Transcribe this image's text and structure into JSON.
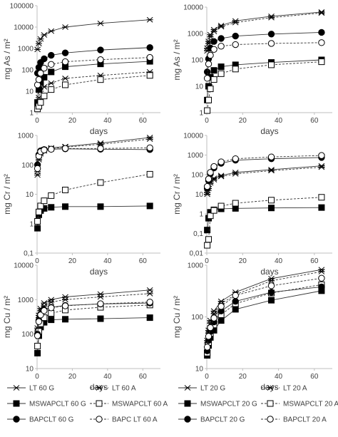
{
  "styles": {
    "lt": {
      "marker": "x",
      "fill": "none"
    },
    "ms": {
      "marker": "square",
      "fill": "#000000"
    },
    "msa": {
      "marker": "square",
      "fill": "#ffffff"
    },
    "ba": {
      "marker": "circle",
      "fill": "#000000"
    },
    "baa": {
      "marker": "circle",
      "fill": "#ffffff"
    }
  },
  "legend": {
    "left": [
      {
        "label": "LT 60 G",
        "style": "lt",
        "dashed": false
      },
      {
        "label": "LT 60 A",
        "style": "lt",
        "dashed": true
      },
      {
        "label": "MSWAPCLT 60 G",
        "style": "ms",
        "dashed": false
      },
      {
        "label": "MSWAPCLT 60 A",
        "style": "msa",
        "dashed": true
      },
      {
        "label": "BAPCLT 60 G",
        "style": "ba",
        "dashed": false
      },
      {
        "label": "BAPC LT 60 A",
        "style": "baa",
        "dashed": true
      }
    ],
    "right": [
      {
        "label": "LT 20 G",
        "style": "lt",
        "dashed": false
      },
      {
        "label": "LT 20 A",
        "style": "lt",
        "dashed": true
      },
      {
        "label": "MSWAPCLT 20 G",
        "style": "ms",
        "dashed": false
      },
      {
        "label": "MSWAPCLT 20 A",
        "style": "msa",
        "dashed": true
      },
      {
        "label": "BAPCLT 20 G",
        "style": "ba",
        "dashed": false
      },
      {
        "label": "BAPCLT 20 A",
        "style": "baa",
        "dashed": true
      }
    ]
  },
  "chart_data": [
    {
      "id": "as60",
      "type": "scatter",
      "xlabel": "days",
      "ylabel": "mg As / m²",
      "xlim": [
        0,
        70
      ],
      "xticks": [
        "0",
        "20",
        "40",
        "60"
      ],
      "yscale": "log",
      "ylim": [
        1,
        100000
      ],
      "yticks": [
        "1",
        "10",
        "100",
        "1000",
        "10000",
        "100000"
      ],
      "series": [
        {
          "style": "lt",
          "dashed": false,
          "x": [
            0.25,
            1,
            2,
            4,
            8,
            16,
            36,
            64
          ],
          "y": [
            900,
            1700,
            2800,
            4300,
            6500,
            10000,
            15000,
            22000
          ]
        },
        {
          "style": "lt",
          "dashed": true,
          "x": [
            0.25,
            1,
            2,
            4,
            8,
            16,
            36,
            64
          ],
          "y": [
            2,
            5,
            10,
            16,
            24,
            40,
            55,
            80
          ]
        },
        {
          "style": "ms",
          "dashed": false,
          "x": [
            0.25,
            1,
            2,
            4,
            8,
            16,
            36,
            64
          ],
          "y": [
            3,
            12,
            25,
            45,
            80,
            140,
            190,
            250
          ]
        },
        {
          "style": "msa",
          "dashed": true,
          "x": [
            0.25,
            1,
            2,
            4,
            8,
            16,
            36,
            64
          ],
          "y": [
            1.5,
            2,
            3,
            6,
            12,
            20,
            35,
            55
          ]
        },
        {
          "style": "ba",
          "dashed": false,
          "x": [
            0.25,
            1,
            2,
            4,
            8,
            16,
            36,
            64
          ],
          "y": [
            70,
            130,
            220,
            330,
            480,
            620,
            850,
            1100
          ]
        },
        {
          "style": "baa",
          "dashed": true,
          "x": [
            0.25,
            1,
            2,
            4,
            8,
            16,
            36,
            64
          ],
          "y": [
            20,
            35,
            70,
            120,
            180,
            240,
            300,
            380
          ]
        }
      ]
    },
    {
      "id": "as20",
      "type": "scatter",
      "xlabel": "days",
      "ylabel": "mg As / m²",
      "xlim": [
        0,
        70
      ],
      "xticks": [
        "0",
        "20",
        "40",
        "60"
      ],
      "yscale": "log",
      "ylim": [
        1,
        10000
      ],
      "yticks": [
        "1",
        "10",
        "100",
        "1000",
        "10000"
      ],
      "series": [
        {
          "style": "lt",
          "dashed": false,
          "x": [
            0.25,
            1,
            2,
            4,
            8,
            16,
            36,
            64
          ],
          "y": [
            280,
            500,
            900,
            1400,
            2000,
            3000,
            4500,
            6500
          ]
        },
        {
          "style": "lt",
          "dashed": true,
          "x": [
            0.25,
            1,
            2,
            4,
            8,
            16,
            36,
            64
          ],
          "y": [
            220,
            420,
            750,
            1200,
            1800,
            2600,
            4000,
            6000
          ]
        },
        {
          "style": "ms",
          "dashed": false,
          "x": [
            0.25,
            1,
            2,
            4,
            8,
            16,
            36,
            64
          ],
          "y": [
            3,
            10,
            22,
            40,
            55,
            65,
            80,
            100
          ]
        },
        {
          "style": "msa",
          "dashed": true,
          "x": [
            0.25,
            1,
            2,
            4,
            8,
            16,
            36,
            64
          ],
          "y": [
            1.2,
            3,
            8,
            18,
            30,
            45,
            65,
            85
          ]
        },
        {
          "style": "ba",
          "dashed": false,
          "x": [
            0.25,
            1,
            2,
            4,
            8,
            16,
            36,
            64
          ],
          "y": [
            35,
            110,
            280,
            500,
            650,
            800,
            950,
            1100
          ]
        },
        {
          "style": "baa",
          "dashed": true,
          "x": [
            0.25,
            1,
            2,
            4,
            8,
            16,
            36,
            64
          ],
          "y": [
            20,
            70,
            150,
            250,
            330,
            380,
            420,
            450
          ]
        }
      ]
    },
    {
      "id": "cr60",
      "type": "scatter",
      "xlabel": "days",
      "ylabel": "mg Cr / m²",
      "xlim": [
        0,
        70
      ],
      "xticks": [
        "0",
        "20",
        "40",
        "60"
      ],
      "yscale": "log",
      "ylim": [
        0.1,
        1000
      ],
      "yticks": [
        "0,1",
        "1",
        "10",
        "100",
        "1000"
      ],
      "series": [
        {
          "style": "lt",
          "dashed": false,
          "x": [
            0.25,
            1,
            2,
            4,
            8,
            16,
            36,
            64
          ],
          "y": [
            60,
            170,
            270,
            330,
            380,
            420,
            550,
            850
          ]
        },
        {
          "style": "lt",
          "dashed": true,
          "x": [
            0.25,
            1,
            2,
            4,
            8,
            16,
            36,
            64
          ],
          "y": [
            45,
            150,
            240,
            300,
            350,
            400,
            500,
            750
          ]
        },
        {
          "style": "ms",
          "dashed": false,
          "x": [
            0.25,
            1,
            2,
            4,
            8,
            16,
            36,
            64
          ],
          "y": [
            0.7,
            2,
            2.8,
            3.3,
            3.6,
            3.8,
            3.8,
            4
          ]
        },
        {
          "style": "msa",
          "dashed": true,
          "x": [
            0.25,
            1,
            2,
            4,
            8,
            16,
            36,
            64
          ],
          "y": [
            1.2,
            2.5,
            4,
            6,
            9,
            14,
            25,
            48
          ]
        },
        {
          "style": "ba",
          "dashed": false,
          "x": [
            0.25,
            1,
            2,
            4,
            8,
            16,
            36,
            64
          ],
          "y": [
            100,
            220,
            300,
            330,
            340,
            350,
            340,
            330
          ]
        },
        {
          "style": "baa",
          "dashed": true,
          "x": [
            0.25,
            1,
            2,
            4,
            8,
            16,
            36,
            64
          ],
          "y": [
            75,
            200,
            280,
            320,
            340,
            360,
            360,
            380
          ]
        }
      ]
    },
    {
      "id": "cr20",
      "type": "scatter",
      "xlabel": "days",
      "ylabel": "mg Cr / m²",
      "xlim": [
        0,
        70
      ],
      "xticks": [
        "0",
        "20",
        "40",
        "60"
      ],
      "yscale": "log",
      "ylim": [
        0.01,
        10000
      ],
      "yticks": [
        "0,01",
        "0,1",
        "1",
        "10",
        "100",
        "1000",
        "10000"
      ],
      "series": [
        {
          "style": "lt",
          "dashed": false,
          "x": [
            0.25,
            1,
            2,
            4,
            8,
            16,
            36,
            64
          ],
          "y": [
            12,
            25,
            45,
            65,
            90,
            130,
            180,
            280
          ]
        },
        {
          "style": "lt",
          "dashed": true,
          "x": [
            0.25,
            1,
            2,
            4,
            8,
            16,
            36,
            64
          ],
          "y": [
            10,
            20,
            38,
            55,
            80,
            110,
            160,
            240
          ]
        },
        {
          "style": "ms",
          "dashed": false,
          "x": [
            0.25,
            1,
            2,
            4,
            8,
            16,
            36,
            64
          ],
          "y": [
            0.15,
            0.6,
            1.2,
            1.6,
            1.8,
            1.9,
            2,
            2.1
          ]
        },
        {
          "style": "msa",
          "dashed": true,
          "x": [
            0.25,
            1,
            2,
            4,
            8,
            16,
            36,
            64
          ],
          "y": [
            0.025,
            0.05,
            0.8,
            1.5,
            2.5,
            3.5,
            5,
            7
          ]
        },
        {
          "style": "ba",
          "dashed": false,
          "x": [
            0.25,
            1,
            2,
            4,
            8,
            16,
            36,
            64
          ],
          "y": [
            20,
            50,
            110,
            220,
            380,
            550,
            650,
            750
          ]
        },
        {
          "style": "baa",
          "dashed": true,
          "x": [
            0.25,
            1,
            2,
            4,
            8,
            16,
            36,
            64
          ],
          "y": [
            25,
            60,
            130,
            260,
            450,
            650,
            800,
            950
          ]
        }
      ]
    },
    {
      "id": "cu60",
      "type": "scatter",
      "xlabel": "days",
      "ylabel": "mg Cu / m²",
      "xlim": [
        0,
        70
      ],
      "xticks": [
        "0",
        "20",
        "40",
        "60"
      ],
      "yscale": "log",
      "ylim": [
        10,
        10000
      ],
      "yticks": [
        "10",
        "100",
        "1000",
        "10000"
      ],
      "series": [
        {
          "style": "lt",
          "dashed": false,
          "x": [
            0.25,
            1,
            2,
            4,
            8,
            16,
            36,
            64
          ],
          "y": [
            150,
            350,
            550,
            800,
            1000,
            1200,
            1450,
            1900
          ]
        },
        {
          "style": "lt",
          "dashed": true,
          "x": [
            0.25,
            1,
            2,
            4,
            8,
            16,
            36,
            64
          ],
          "y": [
            120,
            300,
            480,
            650,
            850,
            1000,
            1200,
            1500
          ]
        },
        {
          "style": "ms",
          "dashed": false,
          "x": [
            0.25,
            1,
            2,
            4,
            8,
            16,
            36,
            64
          ],
          "y": [
            28,
            90,
            160,
            220,
            260,
            270,
            280,
            300
          ]
        },
        {
          "style": "msa",
          "dashed": true,
          "x": [
            0.25,
            1,
            2,
            4,
            8,
            16,
            36,
            64
          ],
          "y": [
            45,
            120,
            200,
            300,
            400,
            500,
            600,
            700
          ]
        },
        {
          "style": "ba",
          "dashed": false,
          "x": [
            0.25,
            1,
            2,
            4,
            8,
            16,
            36,
            64
          ],
          "y": [
            100,
            250,
            380,
            500,
            600,
            680,
            750,
            800
          ]
        },
        {
          "style": "baa",
          "dashed": true,
          "x": [
            0.25,
            1,
            2,
            4,
            8,
            16,
            36,
            64
          ],
          "y": [
            90,
            230,
            360,
            480,
            580,
            660,
            760,
            850
          ]
        }
      ]
    },
    {
      "id": "cu20",
      "type": "scatter",
      "xlabel": "days",
      "ylabel": "mg Cu / m²",
      "xlim": [
        0,
        70
      ],
      "xticks": [
        "0",
        "20",
        "40",
        "60"
      ],
      "yscale": "log",
      "ylim": [
        10,
        1000
      ],
      "yticks": [
        "10",
        "100",
        "1000"
      ],
      "series": [
        {
          "style": "lt",
          "dashed": false,
          "x": [
            0.25,
            1,
            2,
            4,
            8,
            16,
            36,
            64
          ],
          "y": [
            35,
            55,
            85,
            130,
            200,
            300,
            550,
            820
          ]
        },
        {
          "style": "lt",
          "dashed": true,
          "x": [
            0.25,
            1,
            2,
            4,
            8,
            16,
            36,
            64
          ],
          "y": [
            30,
            48,
            75,
            115,
            180,
            270,
            500,
            750
          ]
        },
        {
          "style": "ms",
          "dashed": false,
          "x": [
            0.25,
            1,
            2,
            4,
            8,
            16,
            36,
            64
          ],
          "y": [
            18,
            28,
            40,
            55,
            85,
            140,
            210,
            320
          ]
        },
        {
          "style": "msa",
          "dashed": true,
          "x": [
            0.25,
            1,
            2,
            4,
            8,
            16,
            36,
            64
          ],
          "y": [
            20,
            32,
            48,
            70,
            110,
            180,
            290,
            420
          ]
        },
        {
          "style": "ba",
          "dashed": false,
          "x": [
            0.25,
            1,
            2,
            4,
            8,
            16,
            36,
            64
          ],
          "y": [
            22,
            35,
            52,
            80,
            130,
            200,
            300,
            380
          ]
        },
        {
          "style": "baa",
          "dashed": true,
          "x": [
            0.25,
            1,
            2,
            4,
            8,
            16,
            36,
            64
          ],
          "y": [
            26,
            42,
            62,
            95,
            160,
            260,
            400,
            560
          ]
        }
      ]
    }
  ]
}
